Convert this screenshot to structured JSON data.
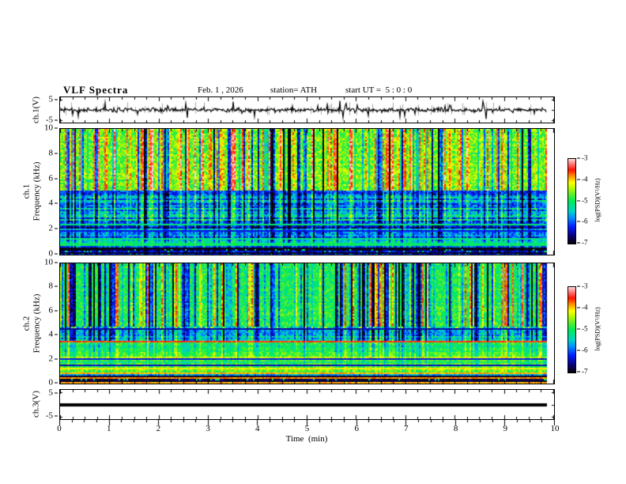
{
  "header": {
    "title": "VLF Spectra",
    "date": "Feb. 1 , 2026",
    "station": "station= ATH",
    "start_ut": "start UT =  5 : 0 : 0"
  },
  "panels": {
    "ch1_wave": {
      "ylabel": "ch.1(V)",
      "yticks": [
        "5",
        "-5"
      ]
    },
    "ch1_spec": {
      "ylabel_ch": "ch.1",
      "ylabel_freq": "Frequency (kHz)",
      "yticks": [
        "10",
        "8",
        "6",
        "4",
        "2",
        "0"
      ]
    },
    "ch2_spec": {
      "ylabel_ch": "ch.2",
      "ylabel_freq": "Frequency (kHz)",
      "yticks": [
        "10",
        "8",
        "6",
        "4",
        "2",
        "0"
      ]
    },
    "ch3_wave": {
      "ylabel": "ch.3(V)",
      "yticks": [
        "5",
        "-5"
      ]
    }
  },
  "xaxis": {
    "label": "Time  (min)",
    "ticks": [
      "0",
      "1",
      "2",
      "3",
      "4",
      "5",
      "6",
      "7",
      "8",
      "9",
      "10"
    ]
  },
  "colorbar": {
    "label": "log(PSD)(V²/Hz)",
    "ticks": [
      "-3",
      "-4",
      "-5",
      "-6",
      "-7"
    ],
    "zlim": [
      -7,
      -3
    ],
    "colormap_stops": [
      {
        "t": 0.0,
        "rgb": [
          5,
          5,
          5
        ]
      },
      {
        "t": 0.09,
        "rgb": [
          10,
          0,
          120
        ]
      },
      {
        "t": 0.2,
        "rgb": [
          0,
          30,
          255
        ]
      },
      {
        "t": 0.3,
        "rgb": [
          0,
          140,
          255
        ]
      },
      {
        "t": 0.38,
        "rgb": [
          0,
          210,
          200
        ]
      },
      {
        "t": 0.5,
        "rgb": [
          0,
          235,
          90
        ]
      },
      {
        "t": 0.58,
        "rgb": [
          90,
          240,
          40
        ]
      },
      {
        "t": 0.66,
        "rgb": [
          190,
          250,
          0
        ]
      },
      {
        "t": 0.72,
        "rgb": [
          255,
          255,
          0
        ]
      },
      {
        "t": 0.8,
        "rgb": [
          255,
          140,
          0
        ]
      },
      {
        "t": 0.87,
        "rgb": [
          255,
          20,
          0
        ]
      },
      {
        "t": 0.94,
        "rgb": [
          255,
          120,
          120
        ]
      },
      {
        "t": 1.0,
        "rgb": [
          255,
          215,
          215
        ]
      }
    ]
  },
  "chart_data": [
    {
      "panel": "ch1_waveform",
      "type": "line",
      "ylabel": "ch.1(V)",
      "ylim": [
        -6,
        6
      ],
      "yticks": [
        5,
        -5
      ],
      "xlim_min": [
        0,
        10
      ],
      "data_extent_min": 9.75,
      "description": "Noisy broadband signal fluctuating around 0 V with frequent impulsive spikes reaching about +/-5 V across the whole 10 minutes.",
      "gen": {
        "seed": 7,
        "std": 0.5,
        "spike_prob": 0.055,
        "spike_mag": 3.2,
        "gray_spikes": 60
      }
    },
    {
      "panel": "ch1_spectrogram",
      "type": "heatmap",
      "ylim": [
        0,
        10
      ],
      "yticks": [
        0,
        2,
        4,
        6,
        8,
        10
      ],
      "xlim_min": [
        0,
        10
      ],
      "zlabel": "log(PSD)(V²/Hz)",
      "zlim": [
        -7,
        -3
      ],
      "description": "Above ~5 kHz: green/yellow background (~-4.6) with dense vertical streaks of red/orange (to -3.3) and near-black dropouts. Dark line at 5 kHz. 2.5-5 kHz: cyan/blue (~-5.7) with horizontal striping. 1-2.5 kHz: blue/dark-blue striping (~-6). Grey-green flat band 0.7-1 kHz. Near-black rows below 0.7 kHz.",
      "gen": {
        "seed": 11,
        "streaks": {
          "density": 0.5,
          "pos_frac": 0.55,
          "mag": 1.15,
          "black_prob": 0.035
        },
        "bands": [
          {
            "f": [
              5.05,
              10.01
            ],
            "base": -4.6,
            "noise": 0.4,
            "streak_gain": 1.0,
            "stripe": 0.12
          },
          {
            "f": [
              4.88,
              5.05
            ],
            "base": -6.1,
            "noise": 0.35,
            "streak_gain": 0.3,
            "stripe": 0.2
          },
          {
            "f": [
              2.55,
              4.88
            ],
            "base": -5.65,
            "noise": 0.45,
            "streak_gain": 0.6,
            "stripe": 0.5
          },
          {
            "f": [
              1.0,
              2.55
            ],
            "base": -5.95,
            "noise": 0.4,
            "streak_gain": 0.35,
            "stripe": 0.6
          },
          {
            "f": [
              0.68,
              1.0
            ],
            "base": -5.1,
            "noise": 0.15,
            "streak_gain": 0.1,
            "stripe": 0.15
          },
          {
            "f": [
              0.0,
              0.68
            ],
            "base": -6.6,
            "noise": 0.3,
            "streak_gain": 0.15,
            "stripe": 0.6,
            "fleck": 0.08,
            "fleck_v": -5.1
          }
        ],
        "hlines": [
          {
            "f": 2.35,
            "v": -5.1
          },
          {
            "f": 1.9,
            "v": -6.3
          },
          {
            "f": 1.3,
            "v": -5.15
          },
          {
            "f": 0.45,
            "v": -7.0
          },
          {
            "f": 0.15,
            "v": -6.9
          }
        ]
      }
    },
    {
      "panel": "ch2_spectrogram",
      "type": "heatmap",
      "ylim": [
        0,
        10
      ],
      "yticks": [
        0,
        2,
        4,
        6,
        8,
        10
      ],
      "xlim_min": [
        0,
        10
      ],
      "zlabel": "log(PSD)(V²/Hz)",
      "zlim": [
        -7,
        -3
      ],
      "description": "Above ~4.7 kHz: green/cyan background (~-5) with many blue/dark-blue vertical streaks and a few yellow ones. Speckled dark band near 4.5 kHz. Red horizontal line at ~3.5 kHz. Yellow-green band near 2 kHz. Strong horizontal lamination 0.3-1 kHz including dark-red lines (~-3.9) and near-black rows at the bottom edge.",
      "gen": {
        "seed": 23,
        "streaks": {
          "density": 0.5,
          "pos_frac": 0.3,
          "mag": 1.15,
          "black_prob": 0.03
        },
        "bands": [
          {
            "f": [
              4.7,
              10.01
            ],
            "base": -4.95,
            "noise": 0.35,
            "streak_gain": 1.0,
            "stripe": 0.12
          },
          {
            "f": [
              4.42,
              4.7
            ],
            "base": -5.8,
            "noise": 0.5,
            "streak_gain": 0.3,
            "stripe": 0.35,
            "fleck": 0.15,
            "fleck_v": -4.3
          },
          {
            "f": [
              3.6,
              4.42
            ],
            "base": -5.5,
            "noise": 0.4,
            "streak_gain": 0.55,
            "stripe": 0.35
          },
          {
            "f": [
              3.42,
              3.6
            ],
            "base": -3.55,
            "noise": 0.2,
            "streak_gain": 0.05,
            "stripe": 0.05
          },
          {
            "f": [
              2.25,
              3.42
            ],
            "base": -4.95,
            "noise": 0.3,
            "streak_gain": 0.3,
            "stripe": 0.3
          },
          {
            "f": [
              1.78,
              2.25
            ],
            "base": -4.6,
            "noise": 0.25,
            "streak_gain": 0.15,
            "stripe": 0.35
          },
          {
            "f": [
              0.95,
              1.78
            ],
            "base": -5.0,
            "noise": 0.3,
            "streak_gain": 0.15,
            "stripe": 0.45
          },
          {
            "f": [
              0.35,
              0.95
            ],
            "base": -5.2,
            "noise": 0.35,
            "streak_gain": 0.1,
            "stripe": 0.9
          },
          {
            "f": [
              0.0,
              0.35
            ],
            "base": -6.7,
            "noise": 0.3,
            "streak_gain": 0.1,
            "stripe": 0.5,
            "fleck": 0.08,
            "fleck_v": -5.0
          }
        ],
        "hlines": [
          {
            "f": 4.55,
            "v": -6.5
          },
          {
            "f": 2.02,
            "v": -6.3
          },
          {
            "f": 1.5,
            "v": -6.4
          },
          {
            "f": 1.22,
            "v": -4.1
          },
          {
            "f": 0.8,
            "v": -3.9
          },
          {
            "f": 0.62,
            "v": -6.9
          },
          {
            "f": 0.42,
            "v": -3.8
          },
          {
            "f": 0.18,
            "v": -6.8
          },
          {
            "f": 0.03,
            "v": -3.9
          }
        ]
      }
    },
    {
      "panel": "ch3_waveform",
      "type": "line",
      "ylabel": "ch.3(V)",
      "ylim": [
        -6,
        6
      ],
      "yticks": [
        5,
        -5
      ],
      "xlim_min": [
        0,
        10
      ],
      "data_extent_min": 9.75,
      "description": "Completely flat thick line at 0 V (channel not recording).",
      "gen": {
        "flat_value": 0,
        "line_width": 4
      }
    }
  ]
}
